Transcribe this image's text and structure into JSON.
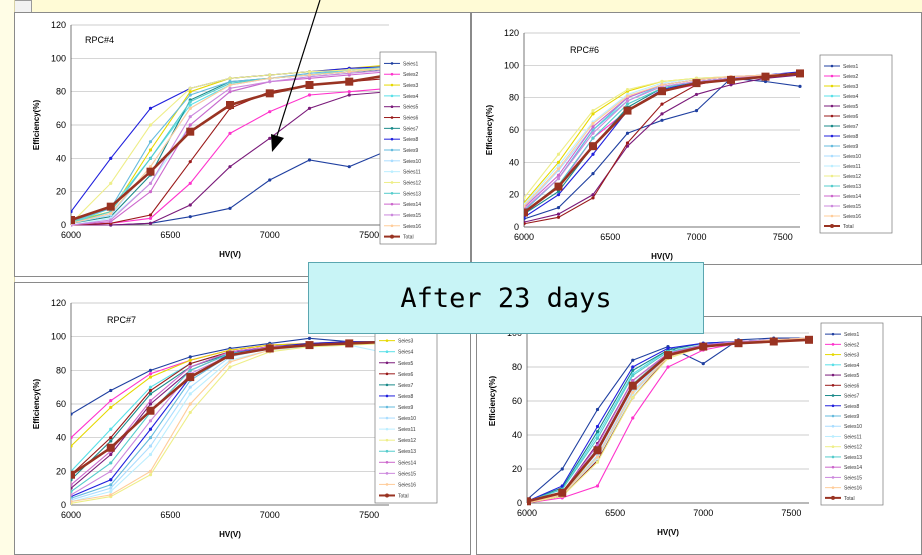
{
  "callout_text": "After 23 days",
  "chart_data": [
    {
      "type": "line",
      "title": "RPC#4",
      "xlabel": "HV(V)",
      "ylabel": "Efficiency(%)",
      "xlim": [
        6000,
        7600
      ],
      "ylim": [
        0,
        120
      ],
      "xticks": [
        6000,
        6500,
        7000,
        7500
      ],
      "yticks": [
        0,
        20,
        40,
        60,
        80,
        100,
        120
      ],
      "legend_position": "right",
      "x": [
        6000,
        6200,
        6400,
        6600,
        6800,
        7000,
        7200,
        7400,
        7600
      ],
      "series": [
        {
          "name": "Seies1",
          "color": "#1f3fa0",
          "values": [
            0,
            0,
            1,
            5,
            10,
            27,
            39,
            35,
            45
          ]
        },
        {
          "name": "Seies2",
          "color": "#ff33cc",
          "values": [
            0,
            1,
            4,
            25,
            55,
            68,
            78,
            80,
            82
          ]
        },
        {
          "name": "Seies3",
          "color": "#e6d800",
          "values": [
            2,
            8,
            45,
            80,
            88,
            90,
            92,
            94,
            96
          ]
        },
        {
          "name": "Seies4",
          "color": "#59e0e8",
          "values": [
            1,
            10,
            40,
            72,
            84,
            88,
            90,
            93,
            95
          ]
        },
        {
          "name": "Seies5",
          "color": "#7a1a7a",
          "values": [
            0,
            0,
            1,
            12,
            35,
            52,
            70,
            78,
            80
          ]
        },
        {
          "name": "Seies6",
          "color": "#9a1a1a",
          "values": [
            0,
            1,
            6,
            38,
            70,
            80,
            84,
            86,
            88
          ]
        },
        {
          "name": "Seies7",
          "color": "#1a8a8a",
          "values": [
            1,
            5,
            30,
            75,
            86,
            88,
            90,
            92,
            93
          ]
        },
        {
          "name": "Seies8",
          "color": "#2020dd",
          "values": [
            8,
            40,
            70,
            82,
            88,
            90,
            92,
            94,
            95
          ]
        },
        {
          "name": "Seies9",
          "color": "#66bbdd",
          "values": [
            2,
            10,
            50,
            78,
            86,
            88,
            91,
            93,
            95
          ]
        },
        {
          "name": "Seies10",
          "color": "#aaddff",
          "values": [
            1,
            6,
            35,
            70,
            84,
            88,
            90,
            92,
            94
          ]
        },
        {
          "name": "Seies11",
          "color": "#bbeeff",
          "values": [
            0,
            4,
            25,
            60,
            80,
            86,
            89,
            91,
            93
          ]
        },
        {
          "name": "Seies12",
          "color": "#eeee88",
          "values": [
            1,
            25,
            60,
            82,
            88,
            90,
            92,
            93,
            94
          ]
        },
        {
          "name": "Seies13",
          "color": "#55cccc",
          "values": [
            1,
            8,
            40,
            74,
            85,
            88,
            90,
            92,
            94
          ]
        },
        {
          "name": "Seies14",
          "color": "#cc66cc",
          "values": [
            0,
            2,
            20,
            60,
            80,
            86,
            88,
            90,
            92
          ]
        },
        {
          "name": "Seies15",
          "color": "#cc88dd",
          "values": [
            0,
            3,
            25,
            65,
            82,
            86,
            89,
            91,
            93
          ]
        },
        {
          "name": "Seies16",
          "color": "#ffcc99",
          "values": [
            1,
            7,
            35,
            70,
            84,
            88,
            90,
            92,
            94
          ]
        },
        {
          "name": "Total",
          "color": "#993322",
          "bold": true,
          "values": [
            3,
            11,
            32,
            56,
            72,
            79,
            84,
            86,
            90
          ]
        }
      ]
    },
    {
      "type": "line",
      "title": "RPC#6",
      "xlabel": "HV(V)",
      "ylabel": "Efficiency(%)",
      "xlim": [
        6000,
        7600
      ],
      "ylim": [
        0,
        120
      ],
      "xticks": [
        6000,
        6500,
        7000,
        7500
      ],
      "yticks": [
        0,
        20,
        40,
        60,
        80,
        100,
        120
      ],
      "legend_position": "right",
      "x": [
        6000,
        6200,
        6400,
        6600,
        6800,
        7000,
        7200,
        7400,
        7600
      ],
      "series": [
        {
          "name": "Seies1",
          "color": "#1f3fa0",
          "values": [
            5,
            12,
            33,
            58,
            66,
            72,
            92,
            90,
            87
          ]
        },
        {
          "name": "Seies2",
          "color": "#ff33cc",
          "values": [
            8,
            25,
            55,
            72,
            84,
            88,
            92,
            94,
            95
          ]
        },
        {
          "name": "Seies3",
          "color": "#e6d800",
          "values": [
            15,
            40,
            70,
            84,
            90,
            92,
            93,
            94,
            95
          ]
        },
        {
          "name": "Seies4",
          "color": "#59e0e8",
          "values": [
            10,
            30,
            60,
            78,
            88,
            91,
            93,
            94,
            95
          ]
        },
        {
          "name": "Seies5",
          "color": "#7a1a7a",
          "values": [
            3,
            8,
            20,
            50,
            70,
            82,
            88,
            92,
            94
          ]
        },
        {
          "name": "Seies6",
          "color": "#9a1a1a",
          "values": [
            2,
            6,
            18,
            52,
            76,
            88,
            92,
            94,
            95
          ]
        },
        {
          "name": "Seies7",
          "color": "#1a8a8a",
          "values": [
            8,
            22,
            50,
            74,
            86,
            90,
            92,
            94,
            95
          ]
        },
        {
          "name": "Seies8",
          "color": "#2020dd",
          "values": [
            6,
            20,
            45,
            72,
            85,
            90,
            92,
            94,
            96
          ]
        },
        {
          "name": "Seies9",
          "color": "#66bbdd",
          "values": [
            10,
            30,
            60,
            80,
            88,
            91,
            93,
            94,
            95
          ]
        },
        {
          "name": "Seies10",
          "color": "#aaddff",
          "values": [
            12,
            35,
            62,
            80,
            88,
            91,
            93,
            94,
            95
          ]
        },
        {
          "name": "Seies11",
          "color": "#bbeeff",
          "values": [
            14,
            38,
            65,
            82,
            89,
            92,
            93,
            94,
            95
          ]
        },
        {
          "name": "Seies12",
          "color": "#eeee88",
          "values": [
            18,
            45,
            72,
            85,
            90,
            92,
            93,
            94,
            95
          ]
        },
        {
          "name": "Seies13",
          "color": "#55cccc",
          "values": [
            9,
            26,
            55,
            76,
            86,
            90,
            92,
            94,
            95
          ]
        },
        {
          "name": "Seies14",
          "color": "#cc66cc",
          "values": [
            12,
            32,
            62,
            80,
            88,
            91,
            93,
            94,
            95
          ]
        },
        {
          "name": "Seies15",
          "color": "#cc88dd",
          "values": [
            11,
            30,
            58,
            78,
            87,
            90,
            92,
            94,
            95
          ]
        },
        {
          "name": "Seies16",
          "color": "#ffcc99",
          "values": [
            13,
            36,
            64,
            81,
            88,
            91,
            93,
            94,
            95
          ]
        },
        {
          "name": "Total",
          "color": "#993322",
          "bold": true,
          "values": [
            9,
            25,
            50,
            72,
            84,
            89,
            91,
            93,
            95
          ]
        }
      ]
    },
    {
      "type": "line",
      "title": "RPC#7",
      "xlabel": "HV(V)",
      "ylabel": "Efficiency(%)",
      "xlim": [
        6000,
        7600
      ],
      "ylim": [
        0,
        120
      ],
      "xticks": [
        6000,
        6500,
        7000,
        7500
      ],
      "yticks": [
        0,
        20,
        40,
        60,
        80,
        100,
        120
      ],
      "legend_position": "right",
      "x": [
        6000,
        6200,
        6400,
        6600,
        6800,
        7000,
        7200,
        7400,
        7600
      ],
      "series": [
        {
          "name": "Seies1",
          "color": "#1f3fa0",
          "values": [
            54,
            68,
            80,
            88,
            93,
            96,
            99,
            97,
            97
          ]
        },
        {
          "name": "Seies2",
          "color": "#ff33cc",
          "values": [
            40,
            62,
            78,
            86,
            92,
            95,
            96,
            97,
            97
          ]
        },
        {
          "name": "Seies3",
          "color": "#e6d800",
          "values": [
            35,
            58,
            76,
            86,
            92,
            95,
            96,
            97,
            97
          ]
        },
        {
          "name": "Seies4",
          "color": "#59e0e8",
          "values": [
            20,
            45,
            70,
            84,
            91,
            94,
            95,
            96,
            97
          ]
        },
        {
          "name": "Seies5",
          "color": "#7a1a7a",
          "values": [
            10,
            30,
            60,
            80,
            90,
            94,
            95,
            96,
            97
          ]
        },
        {
          "name": "Seies6",
          "color": "#9a1a1a",
          "values": [
            18,
            40,
            68,
            84,
            91,
            94,
            95,
            96,
            97
          ]
        },
        {
          "name": "Seies7",
          "color": "#1a8a8a",
          "values": [
            15,
            38,
            66,
            82,
            90,
            93,
            95,
            96,
            97
          ]
        },
        {
          "name": "Seies8",
          "color": "#2020dd",
          "values": [
            5,
            15,
            45,
            76,
            90,
            94,
            96,
            97,
            97
          ]
        },
        {
          "name": "Seies9",
          "color": "#66bbdd",
          "values": [
            4,
            12,
            40,
            74,
            89,
            94,
            95,
            96,
            97
          ]
        },
        {
          "name": "Seies10",
          "color": "#aaddff",
          "values": [
            3,
            10,
            35,
            70,
            88,
            93,
            95,
            96,
            97
          ]
        },
        {
          "name": "Seies11",
          "color": "#bbeeff",
          "values": [
            2,
            8,
            30,
            66,
            86,
            92,
            94,
            95,
            90
          ]
        },
        {
          "name": "Seies12",
          "color": "#eeee88",
          "values": [
            1,
            5,
            18,
            55,
            82,
            91,
            94,
            95,
            96
          ]
        },
        {
          "name": "Seies13",
          "color": "#55cccc",
          "values": [
            8,
            25,
            55,
            80,
            90,
            93,
            95,
            96,
            97
          ]
        },
        {
          "name": "Seies14",
          "color": "#cc66cc",
          "values": [
            12,
            32,
            62,
            82,
            91,
            94,
            95,
            96,
            97
          ]
        },
        {
          "name": "Seies15",
          "color": "#cc88dd",
          "values": [
            6,
            20,
            50,
            78,
            89,
            93,
            95,
            96,
            97
          ]
        },
        {
          "name": "Seies16",
          "color": "#ffcc99",
          "values": [
            2,
            6,
            20,
            60,
            85,
            92,
            95,
            96,
            97
          ]
        },
        {
          "name": "Total",
          "color": "#993322",
          "bold": true,
          "values": [
            18,
            34,
            56,
            76,
            89,
            93,
            95,
            96,
            97
          ]
        }
      ]
    },
    {
      "type": "line",
      "title": "",
      "xlabel": "HV(V)",
      "ylabel": "Efficiency(%)",
      "xlim": [
        6000,
        7600
      ],
      "ylim": [
        0,
        120
      ],
      "xticks": [
        6000,
        6500,
        7000,
        7500
      ],
      "yticks": [
        0,
        20,
        40,
        60,
        80,
        100
      ],
      "legend_position": "right",
      "x": [
        6000,
        6200,
        6400,
        6600,
        6800,
        7000,
        7200,
        7400,
        7600
      ],
      "series": [
        {
          "name": "Seies1",
          "color": "#1f3fa0",
          "values": [
            2,
            20,
            55,
            84,
            92,
            82,
            96,
            97,
            97
          ]
        },
        {
          "name": "Seies2",
          "color": "#ff33cc",
          "values": [
            0,
            3,
            10,
            50,
            80,
            90,
            94,
            96,
            97
          ]
        },
        {
          "name": "Seies3",
          "color": "#e6d800",
          "values": [
            0,
            5,
            30,
            70,
            88,
            93,
            95,
            96,
            97
          ]
        },
        {
          "name": "Seies4",
          "color": "#59e0e8",
          "values": [
            1,
            8,
            40,
            76,
            90,
            94,
            95,
            96,
            97
          ]
        },
        {
          "name": "Seies5",
          "color": "#7a1a7a",
          "values": [
            0,
            6,
            35,
            72,
            88,
            93,
            95,
            96,
            97
          ]
        },
        {
          "name": "Seies6",
          "color": "#9a1a1a",
          "values": [
            0,
            4,
            25,
            62,
            86,
            92,
            95,
            96,
            97
          ]
        },
        {
          "name": "Seies7",
          "color": "#1a8a8a",
          "values": [
            1,
            9,
            42,
            78,
            90,
            94,
            95,
            96,
            97
          ]
        },
        {
          "name": "Seies8",
          "color": "#2020dd",
          "values": [
            1,
            10,
            45,
            80,
            91,
            94,
            95,
            96,
            97
          ]
        },
        {
          "name": "Seies9",
          "color": "#66bbdd",
          "values": [
            0,
            6,
            32,
            70,
            88,
            93,
            95,
            96,
            97
          ]
        },
        {
          "name": "Seies10",
          "color": "#aaddff",
          "values": [
            0,
            5,
            28,
            66,
            87,
            92,
            94,
            96,
            97
          ]
        },
        {
          "name": "Seies11",
          "color": "#bbeeff",
          "values": [
            0,
            5,
            26,
            64,
            86,
            92,
            94,
            96,
            97
          ]
        },
        {
          "name": "Seies12",
          "color": "#eeee88",
          "values": [
            0,
            4,
            24,
            62,
            85,
            92,
            94,
            96,
            97
          ]
        },
        {
          "name": "Seies13",
          "color": "#55cccc",
          "values": [
            1,
            8,
            38,
            75,
            89,
            93,
            95,
            96,
            97
          ]
        },
        {
          "name": "Seies14",
          "color": "#cc66cc",
          "values": [
            0,
            6,
            34,
            72,
            88,
            93,
            95,
            96,
            97
          ]
        },
        {
          "name": "Seies15",
          "color": "#cc88dd",
          "values": [
            0,
            6,
            30,
            68,
            87,
            92,
            95,
            96,
            97
          ]
        },
        {
          "name": "Seies16",
          "color": "#ffcc99",
          "values": [
            0,
            5,
            27,
            65,
            86,
            92,
            94,
            96,
            97
          ]
        },
        {
          "name": "Total",
          "color": "#993322",
          "bold": true,
          "values": [
            1,
            6,
            31,
            69,
            87,
            92,
            94,
            95,
            96
          ]
        }
      ]
    }
  ]
}
